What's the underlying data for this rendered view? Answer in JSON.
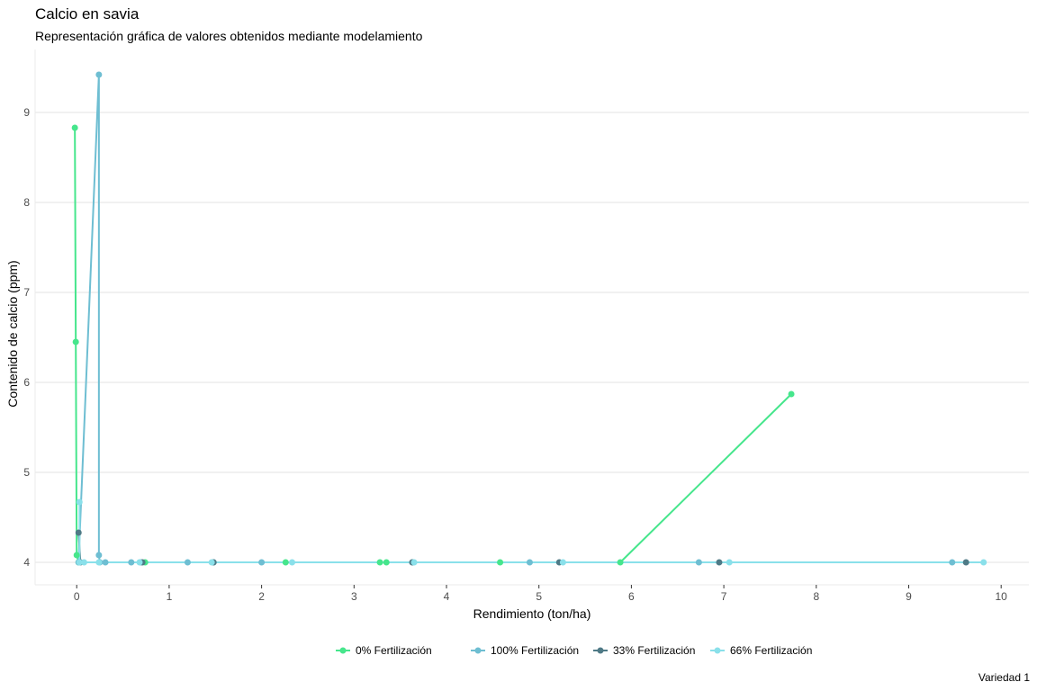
{
  "chart_data": {
    "type": "line",
    "title": "Calcio en savia",
    "subtitle": "Representación gráfica de valores obtenidos mediante modelamiento",
    "xlabel": "Rendimiento (ton/ha)",
    "ylabel": "Contenido de calcio (ppm)",
    "caption": "Variedad 1",
    "xlim": [
      -0.45,
      10.3
    ],
    "ylim": [
      3.75,
      9.7
    ],
    "xticks": [
      0,
      1,
      2,
      3,
      4,
      5,
      6,
      7,
      8,
      9,
      10
    ],
    "yticks": [
      4,
      5,
      6,
      7,
      8,
      9
    ],
    "grid": true,
    "legend_position": "bottom",
    "series": [
      {
        "name": "0% Fertilización",
        "color": "#46e68c",
        "x": [
          7.73,
          5.88,
          4.58,
          3.35,
          3.28,
          2.26,
          0.74,
          0.02,
          0.0,
          -0.02,
          -0.01
        ],
        "y": [
          5.87,
          4.0,
          4.0,
          4.0,
          4.0,
          4.0,
          4.0,
          4.0,
          4.08,
          8.83,
          6.45
        ]
      },
      {
        "name": "100% Fertilización",
        "color": "#6ebed2",
        "x": [
          9.47,
          6.73,
          4.9,
          3.63,
          2.0,
          1.48,
          1.2,
          0.69,
          0.59,
          0.31,
          0.25,
          0.24,
          0.24,
          0.02
        ],
        "y": [
          4.0,
          4.0,
          4.0,
          4.0,
          4.0,
          4.0,
          4.0,
          4.0,
          4.0,
          4.0,
          4.0,
          4.08,
          9.42,
          4.0
        ]
      },
      {
        "name": "33% Fertilización",
        "color": "#4f7a86",
        "x": [
          9.62,
          6.95,
          5.22,
          3.63,
          1.48,
          0.71,
          0.04,
          0.02
        ],
        "y": [
          4.0,
          4.0,
          4.0,
          4.0,
          4.0,
          4.0,
          4.0,
          4.33
        ]
      },
      {
        "name": "66% Fertilización",
        "color": "#8ae0ea",
        "x": [
          9.81,
          7.06,
          5.26,
          3.65,
          2.33,
          1.46,
          0.68,
          0.24,
          0.08,
          0.03,
          0.03
        ],
        "y": [
          4.0,
          4.0,
          4.0,
          4.0,
          4.0,
          4.0,
          4.0,
          4.0,
          4.0,
          4.0,
          4.67
        ]
      }
    ]
  }
}
